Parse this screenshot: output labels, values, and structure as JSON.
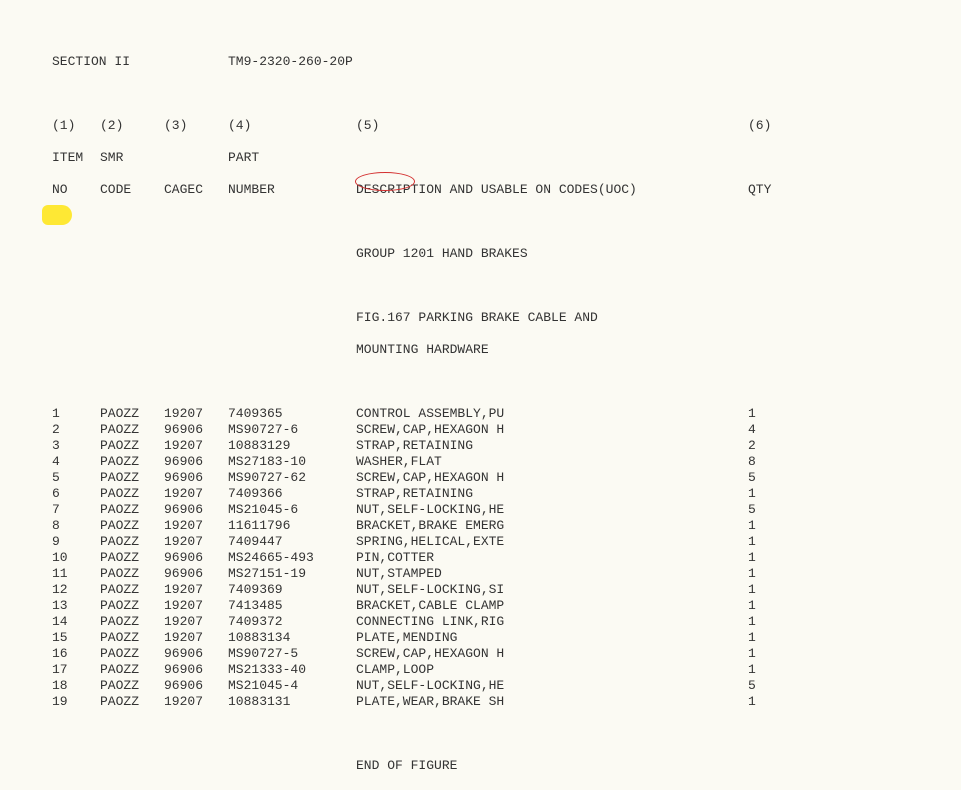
{
  "header": {
    "section": "SECTION II",
    "manual": "TM9-2320-260-20P",
    "col1": "(1)",
    "col2": "(2)",
    "col3": "(3)",
    "col4": "(4)",
    "col5": "(5)",
    "col6": "(6)",
    "h1a": "ITEM",
    "h2a": "SMR",
    "h4a": "PART",
    "h1b": "NO",
    "h2b": "CODE",
    "h3b": "CAGEC",
    "h4b": "NUMBER",
    "h5b": "DESCRIPTION AND USABLE ON CODES(UOC)",
    "h6b": "QTY",
    "group": "GROUP 1201 HAND BRAKES",
    "fig": "FIG.167",
    "fig_title": " PARKING BRAKE CABLE AND",
    "fig_title2": "MOUNTING HARDWARE",
    "end": "END OF FIGURE"
  },
  "rows": [
    {
      "item": "1",
      "smr": "PAOZZ",
      "cagec": "19207",
      "part": "7409365",
      "desc": "CONTROL ASSEMBLY,PU",
      "qty": "1"
    },
    {
      "item": "2",
      "smr": "PAOZZ",
      "cagec": "96906",
      "part": "MS90727-6",
      "desc": "SCREW,CAP,HEXAGON H",
      "qty": "4"
    },
    {
      "item": "3",
      "smr": "PAOZZ",
      "cagec": "19207",
      "part": "10883129",
      "desc": "STRAP,RETAINING",
      "qty": "2"
    },
    {
      "item": "4",
      "smr": "PAOZZ",
      "cagec": "96906",
      "part": "MS27183-10",
      "desc": "WASHER,FLAT",
      "qty": "8"
    },
    {
      "item": "5",
      "smr": "PAOZZ",
      "cagec": "96906",
      "part": "MS90727-62",
      "desc": "SCREW,CAP,HEXAGON H",
      "qty": "5"
    },
    {
      "item": "6",
      "smr": "PAOZZ",
      "cagec": "19207",
      "part": "7409366",
      "desc": "STRAP,RETAINING",
      "qty": "1"
    },
    {
      "item": "7",
      "smr": "PAOZZ",
      "cagec": "96906",
      "part": "MS21045-6",
      "desc": "NUT,SELF-LOCKING,HE",
      "qty": "5"
    },
    {
      "item": "8",
      "smr": "PAOZZ",
      "cagec": "19207",
      "part": "11611796",
      "desc": "BRACKET,BRAKE EMERG",
      "qty": "1"
    },
    {
      "item": "9",
      "smr": "PAOZZ",
      "cagec": "19207",
      "part": "7409447",
      "desc": "SPRING,HELICAL,EXTE",
      "qty": "1"
    },
    {
      "item": "10",
      "smr": "PAOZZ",
      "cagec": "96906",
      "part": "MS24665-493",
      "desc": "PIN,COTTER",
      "qty": "1"
    },
    {
      "item": "11",
      "smr": "PAOZZ",
      "cagec": "96906",
      "part": "MS27151-19",
      "desc": "NUT,STAMPED",
      "qty": "1"
    },
    {
      "item": "12",
      "smr": "PAOZZ",
      "cagec": "19207",
      "part": "7409369",
      "desc": "NUT,SELF-LOCKING,SI",
      "qty": "1"
    },
    {
      "item": "13",
      "smr": "PAOZZ",
      "cagec": "19207",
      "part": "7413485",
      "desc": "BRACKET,CABLE CLAMP",
      "qty": "1"
    },
    {
      "item": "14",
      "smr": "PAOZZ",
      "cagec": "19207",
      "part": "7409372",
      "desc": "CONNECTING LINK,RIG",
      "qty": "1"
    },
    {
      "item": "15",
      "smr": "PAOZZ",
      "cagec": "19207",
      "part": "10883134",
      "desc": "PLATE,MENDING",
      "qty": "1"
    },
    {
      "item": "16",
      "smr": "PAOZZ",
      "cagec": "96906",
      "part": "MS90727-5",
      "desc": "SCREW,CAP,HEXAGON H",
      "qty": "1"
    },
    {
      "item": "17",
      "smr": "PAOZZ",
      "cagec": "96906",
      "part": "MS21333-40",
      "desc": "CLAMP,LOOP",
      "qty": "1"
    },
    {
      "item": "18",
      "smr": "PAOZZ",
      "cagec": "96906",
      "part": "MS21045-4",
      "desc": "NUT,SELF-LOCKING,HE",
      "qty": "5"
    },
    {
      "item": "19",
      "smr": "PAOZZ",
      "cagec": "19207",
      "part": "10883131",
      "desc": "PLATE,WEAR,BRAKE SH",
      "qty": "1"
    }
  ]
}
